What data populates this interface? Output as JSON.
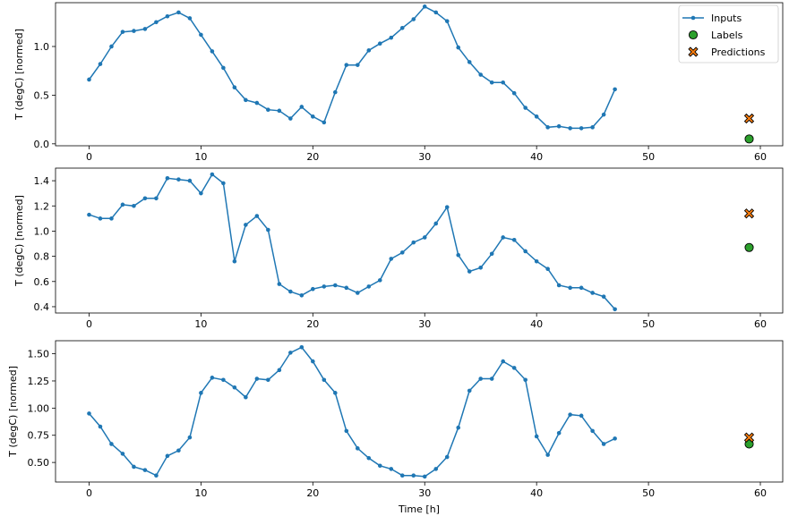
{
  "figure": {
    "xlabel": "Time [h]",
    "legend_position": "top-right",
    "colors": {
      "inputs": "#1f77b4",
      "labels": "#2ca02c",
      "predictions": "#ff7f0e",
      "marker_edge": "#000000",
      "axis": "#000000"
    }
  },
  "chart_data": [
    {
      "type": "line",
      "ylabel": "T (degC) [normed]",
      "xlabel": "",
      "xlim": [
        -3,
        62
      ],
      "ylim": [
        -0.02,
        1.45
      ],
      "xticks": [
        0,
        10,
        20,
        30,
        40,
        50,
        60
      ],
      "yticks": [
        "0.0",
        "0.5",
        "1.0"
      ],
      "legend": [
        {
          "label": "Inputs",
          "marker": "line"
        },
        {
          "label": "Labels",
          "marker": "circle"
        },
        {
          "label": "Predictions",
          "marker": "x"
        }
      ],
      "series": [
        {
          "name": "Inputs",
          "kind": "line",
          "x": [
            0,
            1,
            2,
            3,
            4,
            5,
            6,
            7,
            8,
            9,
            10,
            11,
            12,
            13,
            14,
            15,
            16,
            17,
            18,
            19,
            20,
            21,
            22,
            23,
            24,
            25,
            26,
            27,
            28,
            29,
            30,
            31,
            32,
            33,
            34,
            35,
            36,
            37,
            38,
            39,
            40,
            41,
            42,
            43,
            44,
            45,
            46,
            47
          ],
          "values": [
            0.66,
            0.82,
            1.0,
            1.15,
            1.16,
            1.18,
            1.25,
            1.31,
            1.35,
            1.29,
            1.12,
            0.95,
            0.78,
            0.58,
            0.45,
            0.42,
            0.35,
            0.34,
            0.26,
            0.38,
            0.28,
            0.22,
            0.53,
            0.81,
            0.81,
            0.96,
            1.03,
            1.09,
            1.19,
            1.28,
            1.41,
            1.35,
            1.26,
            0.99,
            0.84,
            0.71,
            0.63,
            0.63,
            0.52,
            0.37,
            0.28,
            0.17,
            0.18,
            0.16,
            0.16,
            0.17,
            0.3,
            0.56
          ]
        },
        {
          "name": "Labels",
          "kind": "scatter",
          "x": [
            59
          ],
          "values": [
            0.05
          ]
        },
        {
          "name": "Predictions",
          "kind": "scatter",
          "x": [
            59
          ],
          "values": [
            0.26
          ]
        }
      ]
    },
    {
      "type": "line",
      "ylabel": "T (degC) [normed]",
      "xlabel": "",
      "xlim": [
        -3,
        62
      ],
      "ylim": [
        0.35,
        1.5
      ],
      "xticks": [
        0,
        10,
        20,
        30,
        40,
        50,
        60
      ],
      "yticks": [
        "0.4",
        "0.6",
        "0.8",
        "1.0",
        "1.2",
        "1.4"
      ],
      "series": [
        {
          "name": "Inputs",
          "kind": "line",
          "x": [
            0,
            1,
            2,
            3,
            4,
            5,
            6,
            7,
            8,
            9,
            10,
            11,
            12,
            13,
            14,
            15,
            16,
            17,
            18,
            19,
            20,
            21,
            22,
            23,
            24,
            25,
            26,
            27,
            28,
            29,
            30,
            31,
            32,
            33,
            34,
            35,
            36,
            37,
            38,
            39,
            40,
            41,
            42,
            43,
            44,
            45,
            46,
            47
          ],
          "values": [
            1.13,
            1.1,
            1.1,
            1.21,
            1.2,
            1.26,
            1.26,
            1.42,
            1.41,
            1.4,
            1.3,
            1.45,
            1.38,
            0.76,
            1.05,
            1.12,
            1.01,
            0.58,
            0.52,
            0.49,
            0.54,
            0.56,
            0.57,
            0.55,
            0.51,
            0.56,
            0.61,
            0.78,
            0.83,
            0.91,
            0.95,
            1.06,
            1.19,
            0.81,
            0.68,
            0.71,
            0.82,
            0.95,
            0.93,
            0.84,
            0.76,
            0.7,
            0.57,
            0.55,
            0.55,
            0.51,
            0.48,
            0.38
          ]
        },
        {
          "name": "Labels",
          "kind": "scatter",
          "x": [
            59
          ],
          "values": [
            0.87
          ]
        },
        {
          "name": "Predictions",
          "kind": "scatter",
          "x": [
            59
          ],
          "values": [
            1.14
          ]
        }
      ]
    },
    {
      "type": "line",
      "ylabel": "T (degC) [normed]",
      "xlabel": "Time [h]",
      "xlim": [
        -3,
        62
      ],
      "ylim": [
        0.32,
        1.62
      ],
      "xticks": [
        0,
        10,
        20,
        30,
        40,
        50,
        60
      ],
      "yticks": [
        "0.50",
        "0.75",
        "1.00",
        "1.25",
        "1.50"
      ],
      "series": [
        {
          "name": "Inputs",
          "kind": "line",
          "x": [
            0,
            1,
            2,
            3,
            4,
            5,
            6,
            7,
            8,
            9,
            10,
            11,
            12,
            13,
            14,
            15,
            16,
            17,
            18,
            19,
            20,
            21,
            22,
            23,
            24,
            25,
            26,
            27,
            28,
            29,
            30,
            31,
            32,
            33,
            34,
            35,
            36,
            37,
            38,
            39,
            40,
            41,
            42,
            43,
            44,
            45,
            46,
            47
          ],
          "values": [
            0.95,
            0.83,
            0.67,
            0.58,
            0.46,
            0.43,
            0.38,
            0.56,
            0.61,
            0.73,
            1.14,
            1.28,
            1.26,
            1.19,
            1.1,
            1.27,
            1.26,
            1.35,
            1.51,
            1.56,
            1.43,
            1.26,
            1.14,
            0.79,
            0.63,
            0.54,
            0.47,
            0.44,
            0.38,
            0.38,
            0.37,
            0.44,
            0.55,
            0.82,
            1.16,
            1.27,
            1.27,
            1.43,
            1.37,
            1.26,
            0.74,
            0.57,
            0.77,
            0.94,
            0.93,
            0.79,
            0.67,
            0.72
          ]
        },
        {
          "name": "Labels",
          "kind": "scatter",
          "x": [
            59
          ],
          "values": [
            0.67
          ]
        },
        {
          "name": "Predictions",
          "kind": "scatter",
          "x": [
            59
          ],
          "values": [
            0.73
          ]
        }
      ]
    }
  ]
}
